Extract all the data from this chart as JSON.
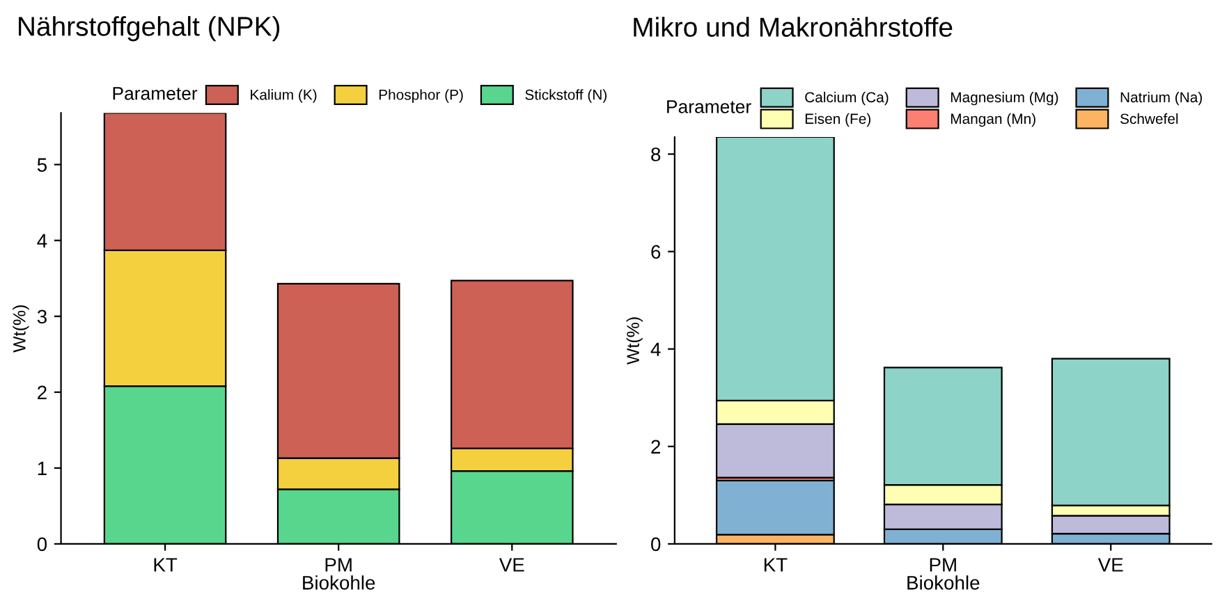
{
  "chart_data": [
    {
      "type": "bar",
      "title": "Nährstoffgehalt (NPK)",
      "xlabel": "Biokohle",
      "ylabel": "Wt(%)",
      "legend_title": "Parameter",
      "stacked": true,
      "legend": "top",
      "grid": false,
      "categories": [
        "KT",
        "PM",
        "VE"
      ],
      "ylim": [
        0,
        5.68
      ],
      "yticks": [
        0,
        1,
        2,
        3,
        4,
        5
      ],
      "series": [
        {
          "name": "Stickstoff (N)",
          "color": "#58d68d",
          "values": [
            2.08,
            0.72,
            0.96
          ]
        },
        {
          "name": "Phosphor (P)",
          "color": "#f4d03f",
          "values": [
            1.79,
            0.41,
            0.3
          ]
        },
        {
          "name": "Kalium (K)",
          "color": "#cd6155",
          "values": [
            1.81,
            2.3,
            2.21
          ]
        }
      ]
    },
    {
      "type": "bar",
      "title": "Mikro und Makronährstoffe",
      "xlabel": "Biokohle",
      "ylabel": "Wt(%)",
      "legend_title": "Parameter",
      "stacked": true,
      "legend": "top",
      "grid": false,
      "categories": [
        "KT",
        "PM",
        "VE"
      ],
      "ylim": [
        0,
        8.35
      ],
      "yticks": [
        0,
        2,
        4,
        6,
        8
      ],
      "series": [
        {
          "name": "Schwefel",
          "color": "#fdb462",
          "values": [
            0.19,
            0,
            0
          ]
        },
        {
          "name": "Natrium (Na)",
          "color": "#80b1d3",
          "values": [
            1.11,
            0.3,
            0.21
          ]
        },
        {
          "name": "Mangan (Mn)",
          "color": "#fb8072",
          "values": [
            0.06,
            null,
            null
          ]
        },
        {
          "name": "Magnesium (Mg)",
          "color": "#bebada",
          "values": [
            1.1,
            0.51,
            0.37
          ]
        },
        {
          "name": "Eisen (Fe)",
          "color": "#ffffb3",
          "values": [
            0.48,
            0.4,
            0.21
          ]
        },
        {
          "name": "Calcium (Ca)",
          "color": "#8dd3c7",
          "values": [
            5.41,
            2.41,
            3.01
          ]
        }
      ]
    }
  ]
}
